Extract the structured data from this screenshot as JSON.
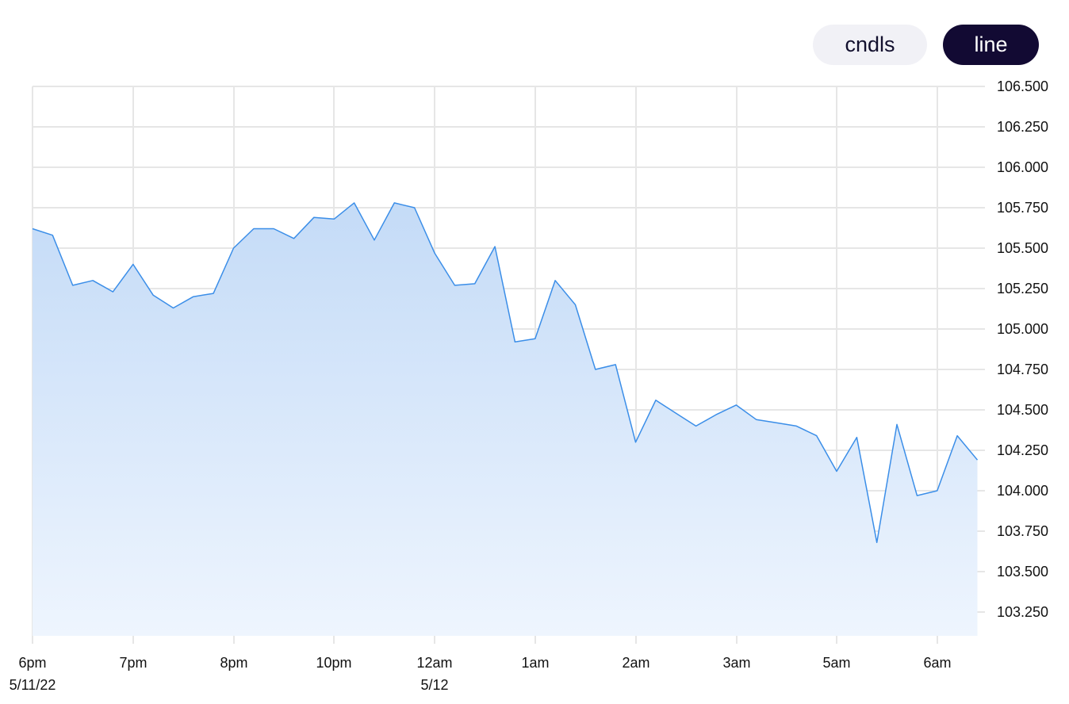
{
  "toolbar": {
    "buttons": [
      {
        "label": "cndls",
        "active": false
      },
      {
        "label": "line",
        "active": true
      }
    ]
  },
  "colors": {
    "line": "#3b8ee8",
    "area_top": "#c4dbf7",
    "area_bottom": "#eef5fe",
    "grid": "#e6e6e6",
    "active_button": "#120a33",
    "inactive_button": "#f1f1f6"
  },
  "chart_data": {
    "type": "area",
    "title": "",
    "xlabel": "",
    "ylabel": "",
    "grid": true,
    "y_axis_side": "right",
    "ylim": [
      103.1,
      106.5
    ],
    "y_ticks": [
      "106.500",
      "106.250",
      "106.000",
      "105.750",
      "105.500",
      "105.250",
      "105.000",
      "104.750",
      "104.500",
      "104.250",
      "104.000",
      "103.750",
      "103.500",
      "103.250"
    ],
    "x_ticks": [
      {
        "label": "6pm",
        "sub": "5/11/22"
      },
      {
        "label": "7pm",
        "sub": ""
      },
      {
        "label": "8pm",
        "sub": ""
      },
      {
        "label": "10pm",
        "sub": ""
      },
      {
        "label": "12am",
        "sub": "5/12"
      },
      {
        "label": "1am",
        "sub": ""
      },
      {
        "label": "2am",
        "sub": ""
      },
      {
        "label": "3am",
        "sub": ""
      },
      {
        "label": "5am",
        "sub": ""
      },
      {
        "label": "6am",
        "sub": ""
      }
    ],
    "series": [
      {
        "values": [
          105.62,
          105.58,
          105.27,
          105.3,
          105.23,
          105.4,
          105.21,
          105.13,
          105.2,
          105.22,
          105.5,
          105.62,
          105.62,
          105.56,
          105.69,
          105.68,
          105.78,
          105.55,
          105.78,
          105.75,
          105.47,
          105.27,
          105.28,
          105.51,
          104.92,
          104.94,
          105.3,
          105.15,
          104.75,
          104.78,
          104.3,
          104.56,
          104.48,
          104.4,
          104.47,
          104.53,
          104.44,
          104.42,
          104.4,
          104.34,
          104.12,
          104.33,
          103.68,
          104.41,
          103.97,
          104.0,
          104.34,
          104.19
        ]
      }
    ]
  }
}
